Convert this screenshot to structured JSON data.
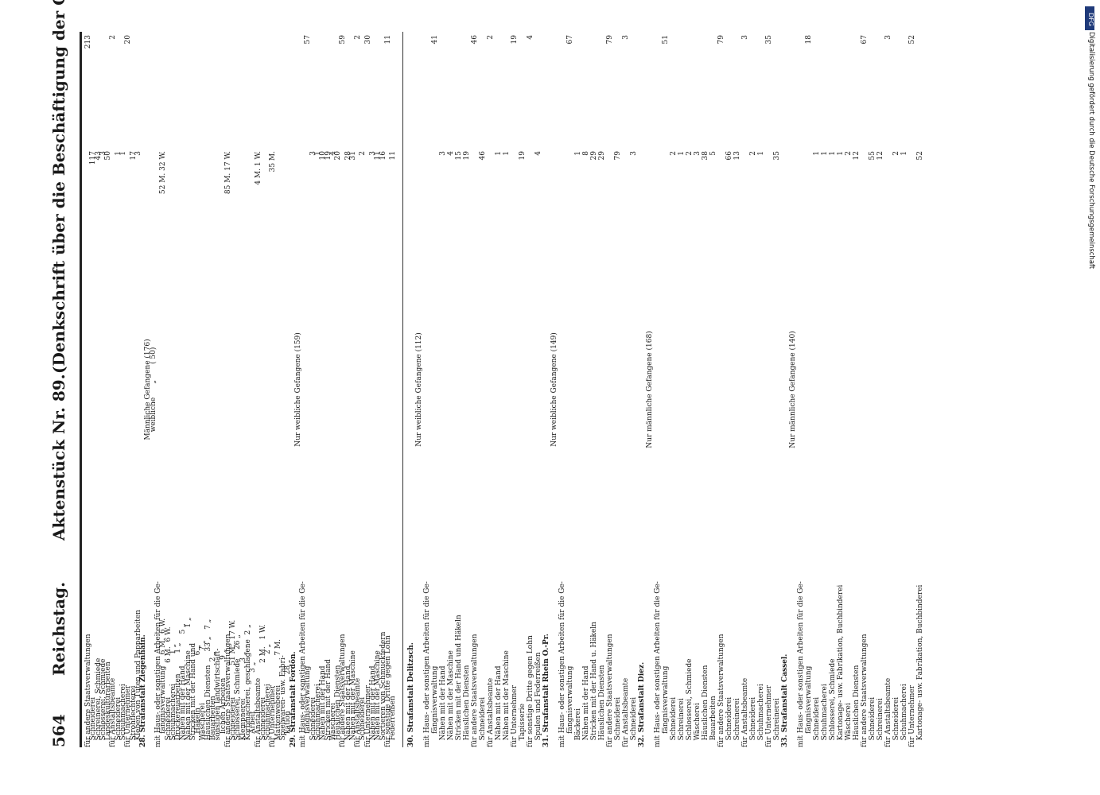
{
  "header": {
    "page_number": "564",
    "left": "Reichstag.",
    "center": "Aktenstück Nr. 89.",
    "right": "(Denkschrift über die Beschäftigung der Gefangenen.)"
  },
  "columns": [
    {
      "rows": [
        {
          "t": "für andere Staatsverwaltungen",
          "c": "",
          "s": "213"
        },
        {
          "t": "   Schneiderei",
          "c": "117",
          "s": ""
        },
        {
          "t": "   Schreinerei, Schmiede",
          "c": "43",
          "s": ""
        },
        {
          "t": "   Schlosserei, Schmiede",
          "c": "3",
          "s": ""
        },
        {
          "t": "   Landeskulturarbeiten",
          "c": "50",
          "s": ""
        },
        {
          "t": "für Anstaltsbeamte",
          "c": "",
          "s": "2"
        },
        {
          "t": "   Schneiderei",
          "c": "1",
          "s": ""
        },
        {
          "t": "   Schuhmacherei",
          "c": "1",
          "s": ""
        },
        {
          "t": "für Unternehmer",
          "c": "",
          "s": "20"
        },
        {
          "t": "   Strohflechterei",
          "c": "17",
          "s": ""
        },
        {
          "t": "   Kleben von Tüten und Papparbeiten",
          "c": "3",
          "s": ""
        },
        {
          "t": "28. Strafanstalt Ziegenhain.",
          "c": "",
          "s": "",
          "sec": true
        },
        {
          "t": "Männliche Gefangene (176)",
          "c": "",
          "s": "",
          "ctr": true
        },
        {
          "t": "weibliche      „       ( 50)",
          "c": "",
          "s": "",
          "ctr": true
        },
        {
          "t": "mit Haus- oder sonstigen Arbeiten für die Ge-",
          "c": "",
          "s": ""
        },
        {
          "t": "      fängnisverwaltung     6 M.  6 W.",
          "c": "52 M.  32 W.",
          "s": ""
        },
        {
          "t": "   Schneiderei               6 M.  6 W.",
          "c": "",
          "s": ""
        },
        {
          "t": "   Schuhmacherei             1 „",
          "c": "",
          "s": ""
        },
        {
          "t": "   Druckereiarbeiten         1 „",
          "c": "",
          "s": ""
        },
        {
          "t": "   Nähen mit der Hand              5 „",
          "c": "",
          "s": ""
        },
        {
          "t": "   Nähen mit der Maschine          1 „",
          "c": "",
          "s": ""
        },
        {
          "t": "   Stricken mit der Hand und",
          "c": "",
          "s": ""
        },
        {
          "t": "      Häkeln                       6 „",
          "c": "",
          "s": ""
        },
        {
          "t": "   Wäscherei                       7 „",
          "c": "",
          "s": ""
        },
        {
          "t": "   Häuslichen Diensten      33 „   7 „",
          "c": "",
          "s": ""
        },
        {
          "t": "   Bauarbeiten               2 „",
          "c": "",
          "s": ""
        },
        {
          "t": "   sonstigen landwirtschaft-",
          "c": "",
          "s": ""
        },
        {
          "t": "      lichen Arbeiten        9 „",
          "c": "",
          "s": ""
        },
        {
          "t": "für andere Staatsverwaltungen",
          "c": "85 M.  17 W.",
          "s": ""
        },
        {
          "t": "   Schneiderei              51 M.  17 W.",
          "c": "",
          "s": ""
        },
        {
          "t": "   Schlosserei, Schmiede    26 „",
          "c": "",
          "s": ""
        },
        {
          "t": "   Klempnerei                3 „",
          "c": "",
          "s": ""
        },
        {
          "t": "   Korbmacherei, geschlagene  2 „",
          "c": "",
          "s": ""
        },
        {
          "t": "      Arbeit                 3 „",
          "c": "",
          "s": ""
        },
        {
          "t": "für Anstaltsbeamte",
          "c": "4 M.  1 W.",
          "s": ""
        },
        {
          "t": "   Schneiderei               2 M.   1 W.",
          "c": "",
          "s": ""
        },
        {
          "t": "   Schuhmacherei             2 „",
          "c": "",
          "s": ""
        },
        {
          "t": "für Unternehmer",
          "c": "35 M.",
          "s": ""
        },
        {
          "t": "   Mattenweberei             7 M.",
          "c": "",
          "s": ""
        },
        {
          "t": "   Spielwaren- usw. Fabri-",
          "c": "",
          "s": ""
        },
        {
          "t": "      kation                28 „",
          "c": "",
          "s": ""
        },
        {
          "t": "29. Strafanstalt Fordon.",
          "c": "",
          "s": "",
          "sec": true
        },
        {
          "t": "Nur weibliche Gefangene (159)",
          "c": "",
          "s": "",
          "ctr": true
        },
        {
          "t": "mit Haus- oder sonstigen Arbeiten für die Ge-",
          "c": "",
          "s": ""
        },
        {
          "t": "      fängnisverwaltung",
          "c": "",
          "s": "57"
        },
        {
          "t": "   Schneiderei",
          "c": "3",
          "s": ""
        },
        {
          "t": "   Schuhmacherei",
          "c": "1",
          "s": ""
        },
        {
          "t": "   Nähen mit der Hand",
          "c": "10",
          "s": ""
        },
        {
          "t": "   Stricken mit der Hand",
          "c": "19",
          "s": ""
        },
        {
          "t": "   Wäscherei",
          "c": "4",
          "s": ""
        },
        {
          "t": "   Häuslichen Diensten",
          "c": "20",
          "s": ""
        },
        {
          "t": "für andere Staatsverwaltungen",
          "c": "",
          "s": "59"
        },
        {
          "t": "   Nähen mit der Hand",
          "c": "28",
          "s": ""
        },
        {
          "t": "   Nähen mit der Maschine",
          "c": "31",
          "s": ""
        },
        {
          "t": "für Anstaltsbeamte",
          "c": "",
          "s": "2"
        },
        {
          "t": "   Schneiderei",
          "c": "2",
          "s": ""
        },
        {
          "t": "für Unternehmer",
          "c": "",
          "s": "30"
        },
        {
          "t": "   Nähen mit der Hand",
          "c": "3",
          "s": ""
        },
        {
          "t": "   Nähen mit der Maschine",
          "c": "11",
          "s": ""
        },
        {
          "t": "   Sortieren von Schmuckfedern",
          "c": "16",
          "s": ""
        },
        {
          "t": "für sonstige Dritte gegen Lohn",
          "c": "",
          "s": "11"
        },
        {
          "t": "   Federreißen",
          "c": "11",
          "s": ""
        }
      ]
    },
    {
      "rows": [
        {
          "t": "30. Strafanstalt Delitzsch.",
          "c": "",
          "s": "",
          "sec": true
        },
        {
          "t": "Nur weibliche Gefangene (112)",
          "c": "",
          "s": "",
          "ctr": true
        },
        {
          "t": "mit Haus- oder sonstigen Arbeiten für die Ge-",
          "c": "",
          "s": ""
        },
        {
          "t": "      fängnisverwaltung",
          "c": "",
          "s": "41"
        },
        {
          "t": "   Nähen mit der Hand",
          "c": "3",
          "s": ""
        },
        {
          "t": "   Nähen mit der Maschine",
          "c": "4",
          "s": ""
        },
        {
          "t": "   Stricken mit der Hand und Häkeln",
          "c": "15",
          "s": ""
        },
        {
          "t": "   Häuslichen Diensten",
          "c": "19",
          "s": ""
        },
        {
          "t": "für andere Staatsverwaltungen",
          "c": "",
          "s": "46"
        },
        {
          "t": "   Schneiderei",
          "c": "46",
          "s": ""
        },
        {
          "t": "für Anstaltsbeamte",
          "c": "",
          "s": "2"
        },
        {
          "t": "   Nähen mit der Hand",
          "c": "1",
          "s": ""
        },
        {
          "t": "   Nähen mit der Maschine",
          "c": "1",
          "s": ""
        },
        {
          "t": "für Unternehmer",
          "c": "",
          "s": "19"
        },
        {
          "t": "   Tapisserie",
          "c": "19",
          "s": ""
        },
        {
          "t": "für sonstige Dritte gegen Lohn",
          "c": "",
          "s": "4"
        },
        {
          "t": "   Spulen und Federreißen",
          "c": "4",
          "s": ""
        },
        {
          "t": "31. Strafanstalt Rhein O.-Pr.",
          "c": "",
          "s": "",
          "sec": true
        },
        {
          "t": "Nur weibliche Gefangene (149)",
          "c": "",
          "s": "",
          "ctr": true
        },
        {
          "t": "mit Haus- oder sonstigen Arbeiten für die Ge-",
          "c": "",
          "s": ""
        },
        {
          "t": "      fängnisverwaltung",
          "c": "",
          "s": "67"
        },
        {
          "t": "   Bäckerei",
          "c": "1",
          "s": ""
        },
        {
          "t": "   Nähen mit der Hand",
          "c": "8",
          "s": ""
        },
        {
          "t": "   Stricken mit der Hand u. Häkeln",
          "c": "29",
          "s": ""
        },
        {
          "t": "   Häuslichen Diensten",
          "c": "29",
          "s": ""
        },
        {
          "t": "für andere Staatsverwaltungen",
          "c": "",
          "s": "79"
        },
        {
          "t": "   Schneiderei",
          "c": "79",
          "s": ""
        },
        {
          "t": "für Anstaltsbeamte",
          "c": "",
          "s": "3"
        },
        {
          "t": "   Schneiderei",
          "c": "3",
          "s": ""
        },
        {
          "t": "32. Strafanstalt Diez.",
          "c": "",
          "s": "",
          "sec": true
        },
        {
          "t": "Nur männliche Gefangene (168)",
          "c": "",
          "s": "",
          "ctr": true
        },
        {
          "t": "mit Haus- oder sonstigen Arbeiten für die Ge-",
          "c": "",
          "s": ""
        },
        {
          "t": "      fängnisverwaltung",
          "c": "",
          "s": "51"
        },
        {
          "t": "   Schneiderei",
          "c": "2",
          "s": ""
        },
        {
          "t": "   Schreinerei",
          "c": "1",
          "s": ""
        },
        {
          "t": "   Schlosserei, Schmiede",
          "c": "2",
          "s": ""
        },
        {
          "t": "   Wäscherei",
          "c": "3",
          "s": ""
        },
        {
          "t": "   Häuslichen Diensten",
          "c": "38",
          "s": ""
        },
        {
          "t": "   Bauarbeiten",
          "c": "5",
          "s": ""
        },
        {
          "t": "für andere Staatsverwaltungen",
          "c": "",
          "s": "79"
        },
        {
          "t": "   Schneiderei",
          "c": "66",
          "s": ""
        },
        {
          "t": "   Schreinerei",
          "c": "13",
          "s": ""
        },
        {
          "t": "für Anstaltsbeamte",
          "c": "",
          "s": "3"
        },
        {
          "t": "   Schneiderei",
          "c": "2",
          "s": ""
        },
        {
          "t": "   Schuhmacherei",
          "c": "1",
          "s": ""
        },
        {
          "t": "für Unternehmer",
          "c": "",
          "s": "35"
        },
        {
          "t": "   Schreinerei",
          "c": "35",
          "s": ""
        },
        {
          "t": "33. Strafanstalt Cassel.",
          "c": "",
          "s": "",
          "sec": true
        },
        {
          "t": "Nur männliche Gefangene (140)",
          "c": "",
          "s": "",
          "ctr": true
        },
        {
          "t": "mit Haus- oder sonstigen Arbeiten für die Ge-",
          "c": "",
          "s": ""
        },
        {
          "t": "      fängnisverwaltung",
          "c": "",
          "s": "18"
        },
        {
          "t": "   Schneiderei",
          "c": "1",
          "s": ""
        },
        {
          "t": "   Schuhmacherei",
          "c": "1",
          "s": ""
        },
        {
          "t": "   Schlosserei, Schmiede",
          "c": "1",
          "s": ""
        },
        {
          "t": "   Kartonage- usw. Fabrikation, Buchbinderei",
          "c": "1",
          "s": ""
        },
        {
          "t": "   Wäscherei",
          "c": "2",
          "s": ""
        },
        {
          "t": "   Häuslichen Diensten",
          "c": "12",
          "s": ""
        },
        {
          "t": "für andere Staatsverwaltungen",
          "c": "",
          "s": "67"
        },
        {
          "t": "   Schneiderei",
          "c": "55",
          "s": ""
        },
        {
          "t": "   Schreinerei",
          "c": "12",
          "s": ""
        },
        {
          "t": "für Anstaltsbeamte",
          "c": "",
          "s": "3"
        },
        {
          "t": "   Schneiderei",
          "c": "2",
          "s": ""
        },
        {
          "t": "   Schuhmacherei",
          "c": "1",
          "s": ""
        },
        {
          "t": "für Unternehmer",
          "c": "",
          "s": "52"
        },
        {
          "t": "   Kartonage- usw. Fabrikation, Buchbinderei",
          "c": "52",
          "s": ""
        }
      ]
    }
  ],
  "side_note": "Digitalisierung gefördert durch die Deutsche Forschungsgemeinschaft",
  "dfg_logo": "DFG"
}
